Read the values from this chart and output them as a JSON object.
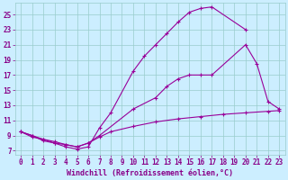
{
  "bg_color": "#cceeff",
  "line_color": "#990099",
  "grid_color": "#99cccc",
  "xlabel": "Windchill (Refroidissement éolien,°C)",
  "xlabel_color": "#880088",
  "xlabel_fontsize": 6.0,
  "tick_fontsize": 5.5,
  "tick_color": "#880088",
  "xlim": [
    -0.5,
    23.5
  ],
  "ylim": [
    6.5,
    26.5
  ],
  "yticks": [
    7,
    9,
    11,
    13,
    15,
    17,
    19,
    21,
    23,
    25
  ],
  "xticks": [
    0,
    1,
    2,
    3,
    4,
    5,
    6,
    7,
    8,
    9,
    10,
    11,
    12,
    13,
    14,
    15,
    16,
    17,
    18,
    19,
    20,
    21,
    22,
    23
  ],
  "curve1_x": [
    0,
    1,
    2,
    3,
    4,
    5,
    6,
    7,
    8,
    10,
    11,
    12,
    13,
    14,
    15,
    16,
    17,
    20
  ],
  "curve1_y": [
    9.5,
    9.0,
    8.5,
    8.0,
    7.5,
    7.2,
    7.5,
    10.0,
    12.0,
    17.5,
    19.5,
    21.0,
    22.5,
    24.0,
    25.3,
    25.8,
    26.0,
    23.0
  ],
  "curve2_x": [
    0,
    1,
    2,
    3,
    4,
    5,
    6,
    7,
    10,
    12,
    13,
    14,
    15,
    16,
    17,
    20,
    21,
    22,
    23
  ],
  "curve2_y": [
    9.5,
    9.0,
    8.3,
    8.0,
    7.8,
    7.5,
    8.0,
    9.0,
    12.5,
    14.0,
    15.5,
    16.5,
    17.0,
    17.0,
    17.0,
    21.0,
    18.5,
    13.5,
    12.5
  ],
  "curve3_x": [
    0,
    1,
    2,
    3,
    4,
    5,
    6,
    7,
    8,
    10,
    12,
    14,
    16,
    18,
    20,
    22,
    23
  ],
  "curve3_y": [
    9.5,
    8.8,
    8.5,
    8.2,
    7.8,
    7.5,
    8.0,
    8.8,
    9.5,
    10.2,
    10.8,
    11.2,
    11.5,
    11.8,
    12.0,
    12.2,
    12.3
  ]
}
